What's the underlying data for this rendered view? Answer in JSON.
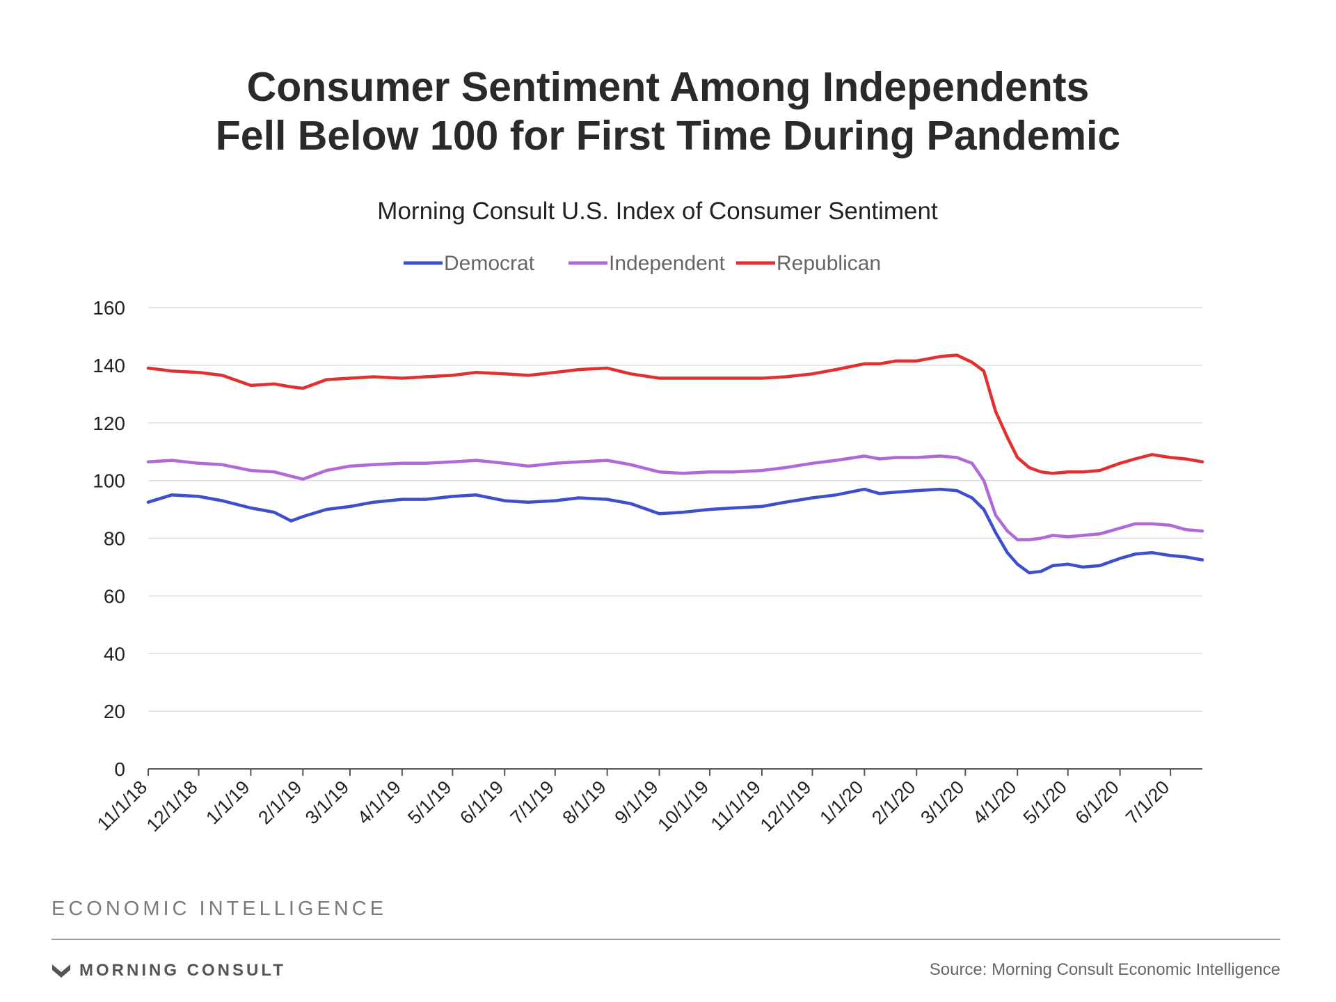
{
  "chart_data": {
    "type": "line",
    "title": [
      "Consumer Sentiment Among Independents",
      "Fell Below 100 for First Time During Pandemic"
    ],
    "subtitle": "Morning Consult U.S. Index of Consumer Sentiment",
    "xlabel": "",
    "ylabel": "",
    "ylim": [
      0,
      160
    ],
    "yticks": [
      "0",
      "20",
      "40",
      "60",
      "80",
      "100",
      "120",
      "140",
      "160"
    ],
    "xticks": [
      "11/1/18",
      "12/1/18",
      "1/1/19",
      "2/1/19",
      "3/1/19",
      "4/1/19",
      "5/1/19",
      "6/1/19",
      "7/1/19",
      "8/1/19",
      "9/1/19",
      "10/1/19",
      "11/1/19",
      "12/1/19",
      "1/1/20",
      "2/1/20",
      "3/1/20",
      "4/1/20",
      "5/1/20",
      "6/1/20",
      "7/1/20"
    ],
    "grid": true,
    "legend_position": "top-center",
    "x": [
      "2018-11-01",
      "2018-11-15",
      "2018-12-01",
      "2018-12-15",
      "2019-01-01",
      "2019-01-15",
      "2019-01-25",
      "2019-02-01",
      "2019-02-15",
      "2019-03-01",
      "2019-03-15",
      "2019-04-01",
      "2019-04-15",
      "2019-05-01",
      "2019-05-15",
      "2019-06-01",
      "2019-06-15",
      "2019-07-01",
      "2019-07-15",
      "2019-08-01",
      "2019-08-15",
      "2019-09-01",
      "2019-09-15",
      "2019-10-01",
      "2019-10-15",
      "2019-11-01",
      "2019-11-15",
      "2019-12-01",
      "2019-12-15",
      "2020-01-01",
      "2020-01-10",
      "2020-01-20",
      "2020-02-01",
      "2020-02-15",
      "2020-02-25",
      "2020-03-05",
      "2020-03-12",
      "2020-03-19",
      "2020-03-26",
      "2020-04-01",
      "2020-04-08",
      "2020-04-15",
      "2020-04-22",
      "2020-05-01",
      "2020-05-10",
      "2020-05-20",
      "2020-06-01",
      "2020-06-10",
      "2020-06-20",
      "2020-07-01",
      "2020-07-10",
      "2020-07-20"
    ],
    "series": [
      {
        "name": "Democrat",
        "color": "#3d4fcc",
        "values": [
          92.5,
          95,
          94.5,
          93,
          90.5,
          89,
          86,
          87.5,
          90,
          91,
          92.5,
          93.5,
          93.5,
          94.5,
          95,
          93,
          92.5,
          93,
          94,
          93.5,
          92,
          88.5,
          89,
          90,
          90.5,
          91,
          92.5,
          94,
          95,
          97,
          95.5,
          96,
          96.5,
          97,
          96.5,
          94,
          90,
          82,
          75,
          71,
          68,
          68.5,
          70.5,
          71,
          70,
          70.5,
          73,
          74.5,
          75,
          74,
          73.5,
          72.5
        ]
      },
      {
        "name": "Independent",
        "color": "#b06ad6",
        "values": [
          106.5,
          107,
          106,
          105.5,
          103.5,
          103,
          101.5,
          100.5,
          103.5,
          105,
          105.5,
          106,
          106,
          106.5,
          107,
          106,
          105,
          106,
          106.5,
          107,
          105.5,
          103,
          102.5,
          103,
          103,
          103.5,
          104.5,
          106,
          107,
          108.5,
          107.5,
          108,
          108,
          108.5,
          108,
          106,
          100,
          88,
          82.5,
          79.5,
          79.5,
          80,
          81,
          80.5,
          81,
          81.5,
          83.5,
          85,
          85,
          84.5,
          83,
          82.5
        ]
      },
      {
        "name": "Republican",
        "color": "#e03030",
        "values": [
          139,
          138,
          137.5,
          136.5,
          133,
          133.5,
          132.5,
          132,
          135,
          135.5,
          136,
          135.5,
          136,
          136.5,
          137.5,
          137,
          136.5,
          137.5,
          138.5,
          139,
          137,
          135.5,
          135.5,
          135.5,
          135.5,
          135.5,
          136,
          137,
          138.5,
          140.5,
          140.5,
          141.5,
          141.5,
          143,
          143.5,
          141,
          138,
          124,
          115,
          108,
          104.5,
          103,
          102.5,
          103,
          103,
          103.5,
          106,
          107.5,
          109,
          108,
          107.5,
          106.5
        ]
      }
    ]
  },
  "footer": {
    "brand_line": "ECONOMIC INTELLIGENCE",
    "logo_text": "MORNING CONSULT",
    "logo_icon": "chevron-logo-icon",
    "source": "Source: Morning Consult Economic Intelligence"
  },
  "colors": {
    "grid": "#dcdcdc",
    "axis": "#555555",
    "tick_label": "#222222",
    "legend_text": "#666666"
  }
}
